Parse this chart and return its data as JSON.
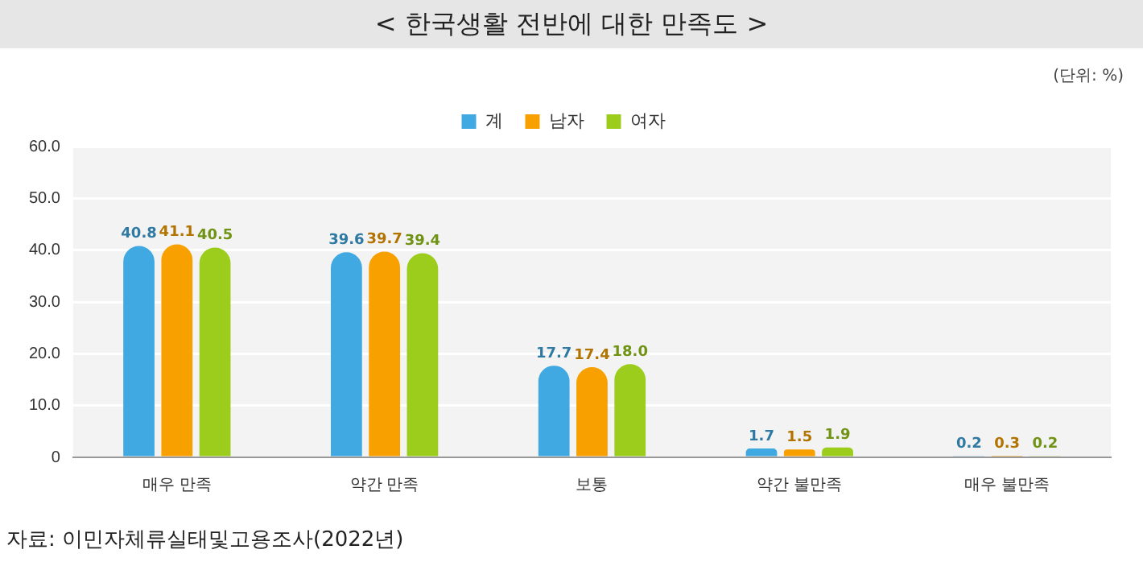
{
  "chart_data": {
    "type": "bar",
    "title": "< 한국생활 전반에 대한 만족도 >",
    "subtitle": "(단위: %)",
    "categories": [
      "매우 만족",
      "약간 만족",
      "보통",
      "약간 불만족",
      "매우 불만족"
    ],
    "series": [
      {
        "name": "계",
        "color": "#41a9e1",
        "values": [
          40.8,
          39.6,
          17.7,
          1.7,
          0.2
        ],
        "value_labels": [
          "40.8",
          "39.6",
          "17.7",
          "1.7",
          "0.2"
        ]
      },
      {
        "name": "남자",
        "color": "#f7a000",
        "values": [
          41.1,
          39.7,
          17.4,
          1.5,
          0.3
        ],
        "value_labels": [
          "41.1",
          "39.7",
          "17.4",
          "1.5",
          "0.3"
        ]
      },
      {
        "name": "여자",
        "color": "#9ccc1c",
        "values": [
          40.5,
          39.4,
          18.0,
          1.9,
          0.2
        ],
        "value_labels": [
          "40.5",
          "39.4",
          "18.0",
          "1.9",
          "0.2"
        ]
      }
    ],
    "ylim": [
      0,
      60
    ],
    "yticks": [
      {
        "value": 0,
        "label": "0"
      },
      {
        "value": 10,
        "label": "10.0"
      },
      {
        "value": 20,
        "label": "20.0"
      },
      {
        "value": 30,
        "label": "30.0"
      },
      {
        "value": 40,
        "label": "40.0"
      },
      {
        "value": 50,
        "label": "50.0"
      },
      {
        "value": 60,
        "label": "60.0"
      }
    ],
    "grid": "y",
    "legend": "top",
    "annotations": [
      "자료: 이민자체류실태및고용조사(2022년)"
    ]
  }
}
